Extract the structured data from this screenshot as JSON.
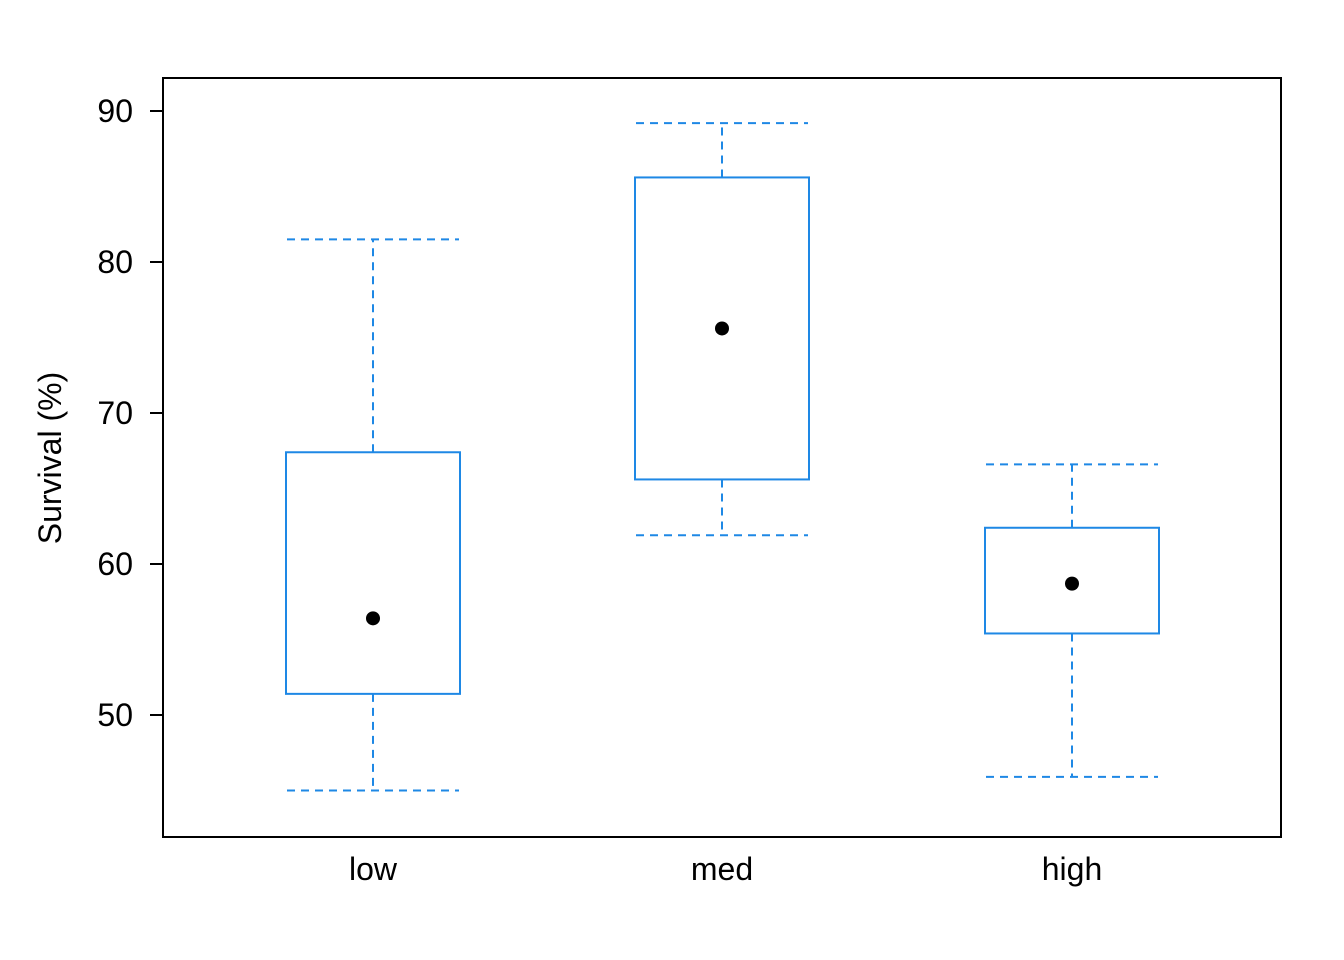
{
  "chart_data": {
    "type": "box",
    "ylabel": "Survival (%)",
    "xlabel": "",
    "title": "",
    "categories": [
      "low",
      "med",
      "high"
    ],
    "boxes": [
      {
        "category": "low",
        "whisker_low": 45.0,
        "q1": 51.4,
        "median": 56.4,
        "q3": 67.4,
        "whisker_high": 81.5
      },
      {
        "category": "med",
        "whisker_low": 61.9,
        "q1": 65.6,
        "median": 75.6,
        "q3": 85.6,
        "whisker_high": 89.2
      },
      {
        "category": "high",
        "whisker_low": 45.9,
        "q1": 55.4,
        "median": 58.7,
        "q3": 62.4,
        "whisker_high": 66.6
      }
    ],
    "ylim": [
      42,
      92
    ],
    "yticks": [
      50,
      60,
      70,
      80,
      90
    ],
    "ytick_labels": [
      "50",
      "60",
      "70",
      "80",
      "90"
    ],
    "grid": false,
    "legend": "none",
    "colors": {
      "box": "#1E88E5",
      "median_point": "#000000",
      "frame": "#000000"
    }
  }
}
